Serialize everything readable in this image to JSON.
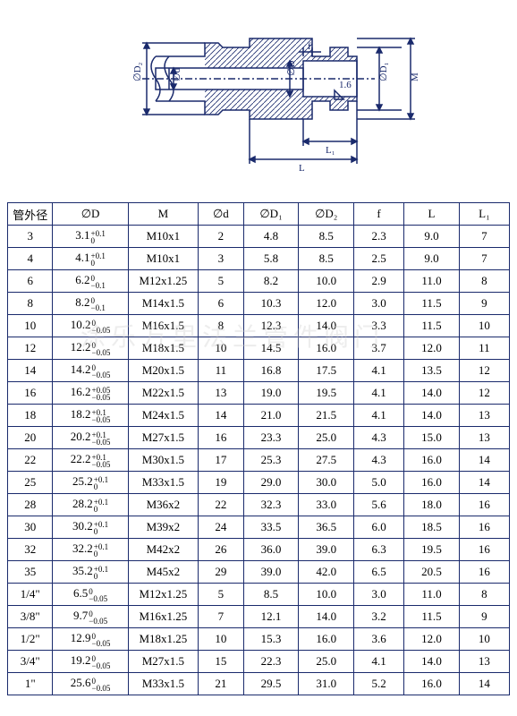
{
  "diagram": {
    "labels": {
      "phiD2": "∅D₂",
      "phid": "∅d",
      "phiD": "∅D",
      "phiD1": "∅D₁",
      "M": "M",
      "f": "f",
      "L1": "L₁",
      "L": "L",
      "ra": "1.6"
    },
    "stroke": "#1a2a6c"
  },
  "table": {
    "headers": [
      "管外径",
      "∅D",
      "M",
      "∅d",
      "∅D₁",
      "∅D₂",
      "f",
      "L",
      "L₁"
    ],
    "rows": [
      {
        "od": "3",
        "D": {
          "v": "3.1",
          "up": "+0.1",
          "lo": "0"
        },
        "M": "M10x1",
        "d": "2",
        "D1": "4.8",
        "D2": "8.5",
        "f": "2.3",
        "L": "9.0",
        "L1": "7"
      },
      {
        "od": "4",
        "D": {
          "v": "4.1",
          "up": "+0.1",
          "lo": "0"
        },
        "M": "M10x1",
        "d": "3",
        "D1": "5.8",
        "D2": "8.5",
        "f": "2.5",
        "L": "9.0",
        "L1": "7"
      },
      {
        "od": "6",
        "D": {
          "v": "6.2",
          "up": "0",
          "lo": "−0.1"
        },
        "M": "M12x1.25",
        "d": "5",
        "D1": "8.2",
        "D2": "10.0",
        "f": "2.9",
        "L": "11.0",
        "L1": "8"
      },
      {
        "od": "8",
        "D": {
          "v": "8.2",
          "up": "0",
          "lo": "−0.1"
        },
        "M": "M14x1.5",
        "d": "6",
        "D1": "10.3",
        "D2": "12.0",
        "f": "3.0",
        "L": "11.5",
        "L1": "9"
      },
      {
        "od": "10",
        "D": {
          "v": "10.2",
          "up": "0",
          "lo": "−0.05"
        },
        "M": "M16x1.5",
        "d": "8",
        "D1": "12.3",
        "D2": "14.0",
        "f": "3.3",
        "L": "11.5",
        "L1": "10"
      },
      {
        "od": "12",
        "D": {
          "v": "12.2",
          "up": "0",
          "lo": "−0.05"
        },
        "M": "M18x1.5",
        "d": "10",
        "D1": "14.5",
        "D2": "16.0",
        "f": "3.7",
        "L": "12.0",
        "L1": "11"
      },
      {
        "od": "14",
        "D": {
          "v": "14.2",
          "up": "0",
          "lo": "−0.05"
        },
        "M": "M20x1.5",
        "d": "11",
        "D1": "16.8",
        "D2": "17.5",
        "f": "4.1",
        "L": "13.5",
        "L1": "12"
      },
      {
        "od": "16",
        "D": {
          "v": "16.2",
          "up": "+0.05",
          "lo": "−0.05"
        },
        "M": "M22x1.5",
        "d": "13",
        "D1": "19.0",
        "D2": "19.5",
        "f": "4.1",
        "L": "14.0",
        "L1": "12"
      },
      {
        "od": "18",
        "D": {
          "v": "18.2",
          "up": "+0.1",
          "lo": "−0.05"
        },
        "M": "M24x1.5",
        "d": "14",
        "D1": "21.0",
        "D2": "21.5",
        "f": "4.1",
        "L": "14.0",
        "L1": "13"
      },
      {
        "od": "20",
        "D": {
          "v": "20.2",
          "up": "+0.1",
          "lo": "−0.05"
        },
        "M": "M27x1.5",
        "d": "16",
        "D1": "23.3",
        "D2": "25.0",
        "f": "4.3",
        "L": "15.0",
        "L1": "13"
      },
      {
        "od": "22",
        "D": {
          "v": "22.2",
          "up": "+0.1",
          "lo": "−0.05"
        },
        "M": "M30x1.5",
        "d": "17",
        "D1": "25.3",
        "D2": "27.5",
        "f": "4.3",
        "L": "16.0",
        "L1": "14"
      },
      {
        "od": "25",
        "D": {
          "v": "25.2",
          "up": "+0.1",
          "lo": "0"
        },
        "M": "M33x1.5",
        "d": "19",
        "D1": "29.0",
        "D2": "30.0",
        "f": "5.0",
        "L": "16.0",
        "L1": "14"
      },
      {
        "od": "28",
        "D": {
          "v": "28.2",
          "up": "+0.1",
          "lo": "0"
        },
        "M": "M36x2",
        "d": "22",
        "D1": "32.3",
        "D2": "33.0",
        "f": "5.6",
        "L": "18.0",
        "L1": "16"
      },
      {
        "od": "30",
        "D": {
          "v": "30.2",
          "up": "+0.1",
          "lo": "0"
        },
        "M": "M39x2",
        "d": "24",
        "D1": "33.5",
        "D2": "36.5",
        "f": "6.0",
        "L": "18.5",
        "L1": "16"
      },
      {
        "od": "32",
        "D": {
          "v": "32.2",
          "up": "+0.1",
          "lo": "0"
        },
        "M": "M42x2",
        "d": "26",
        "D1": "36.0",
        "D2": "39.0",
        "f": "6.3",
        "L": "19.5",
        "L1": "16"
      },
      {
        "od": "35",
        "D": {
          "v": "35.2",
          "up": "+0.1",
          "lo": "0"
        },
        "M": "M45x2",
        "d": "29",
        "D1": "39.0",
        "D2": "42.0",
        "f": "6.5",
        "L": "20.5",
        "L1": "16"
      },
      {
        "od": "1/4\"",
        "D": {
          "v": "6.5",
          "up": "0",
          "lo": "−0.05"
        },
        "M": "M12x1.25",
        "d": "5",
        "D1": "8.5",
        "D2": "10.0",
        "f": "3.0",
        "L": "11.0",
        "L1": "8"
      },
      {
        "od": "3/8\"",
        "D": {
          "v": "9.7",
          "up": "0",
          "lo": "−0.05"
        },
        "M": "M16x1.25",
        "d": "7",
        "D1": "12.1",
        "D2": "14.0",
        "f": "3.2",
        "L": "11.5",
        "L1": "9"
      },
      {
        "od": "1/2\"",
        "D": {
          "v": "12.9",
          "up": "0",
          "lo": "−0.05"
        },
        "M": "M18x1.25",
        "d": "10",
        "D1": "15.3",
        "D2": "16.0",
        "f": "3.6",
        "L": "12.0",
        "L1": "10"
      },
      {
        "od": "3/4\"",
        "D": {
          "v": "19.2",
          "up": "0",
          "lo": "−0.05"
        },
        "M": "M27x1.5",
        "d": "15",
        "D1": "22.3",
        "D2": "25.0",
        "f": "4.1",
        "L": "14.0",
        "L1": "13"
      },
      {
        "od": "1\"",
        "D": {
          "v": "25.6",
          "up": "0",
          "lo": "−0.05"
        },
        "M": "M33x1.5",
        "d": "21",
        "D1": "29.5",
        "D2": "31.0",
        "f": "5.2",
        "L": "16.0",
        "L1": "14"
      }
    ]
  },
  "watermark": "涂乐万里法兰管件阀门"
}
